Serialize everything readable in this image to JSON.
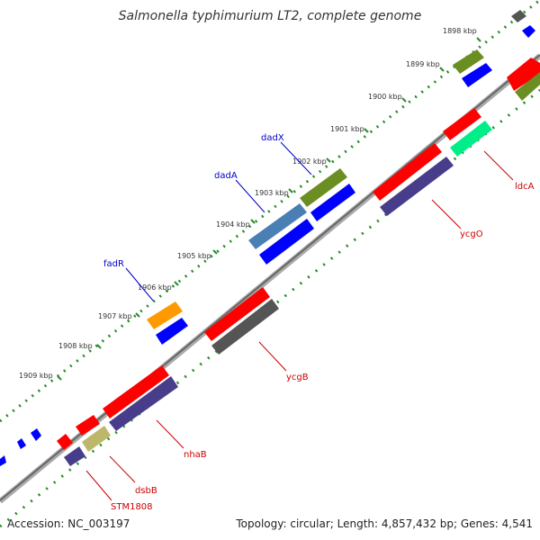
{
  "title": "Salmonella typhimurium LT2, complete genome",
  "footer": {
    "accession": "Accession: NC_003197",
    "summary": "Topology: circular; Length: 4,857,432 bp; Genes: 4,541"
  },
  "ticks": [
    "1898 kbp",
    "1899 kbp",
    "1900 kbp",
    "1901 kbp",
    "1902 kbp",
    "1903 kbp",
    "1904 kbp",
    "1905 kbp",
    "1906 kbp",
    "1907 kbp",
    "1908 kbp",
    "1909 kbp"
  ],
  "labels_blue": [
    "dadX",
    "dadA",
    "fadR"
  ],
  "labels_red": [
    "ldcA",
    "ycgO",
    "ycgB",
    "nhaB",
    "dsbB",
    "STM1808"
  ],
  "colors": {
    "forward_cds": "#ff0000",
    "reverse_cds": "#0000ff",
    "backbone": "#888888",
    "tick_green": "#2a8a2a",
    "olive": "#6b8e23",
    "steelblue": "#4a7fb5",
    "orange": "#ff9900",
    "purple": "#483d8b",
    "gray": "#555555",
    "khaki": "#bdb76b",
    "springgreen": "#00ee88",
    "label_blue": "#0000cc",
    "label_red": "#cc0000"
  }
}
